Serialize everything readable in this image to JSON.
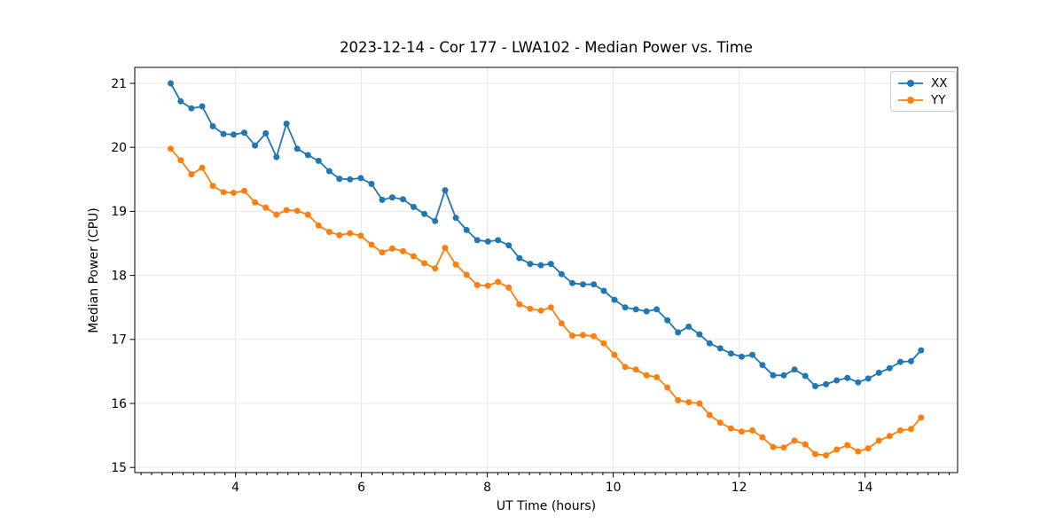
{
  "chart_data": {
    "type": "line",
    "title": "2023-12-14 - Cor 177 - LWA102 - Median Power vs. Time",
    "xlabel": "UT Time (hours)",
    "ylabel": "Median Power (CPU)",
    "xlim": [
      2.4,
      15.47
    ],
    "ylim": [
      14.92,
      21.25
    ],
    "x_major_ticks": [
      4,
      6,
      8,
      10,
      12,
      14
    ],
    "y_major_ticks": [
      15,
      16,
      17,
      18,
      19,
      20,
      21
    ],
    "x_minor_tick_step": 0.1667,
    "grid": true,
    "grid_color": "#e7e7e7",
    "background": "#ffffff",
    "legend": {
      "position": "upper right",
      "entries": [
        "XX",
        "YY"
      ]
    },
    "x": [
      2.97,
      3.13,
      3.3,
      3.47,
      3.64,
      3.81,
      3.97,
      4.14,
      4.31,
      4.48,
      4.65,
      4.81,
      4.98,
      5.15,
      5.32,
      5.49,
      5.65,
      5.82,
      5.99,
      6.16,
      6.33,
      6.49,
      6.66,
      6.83,
      7.0,
      7.17,
      7.33,
      7.5,
      7.67,
      7.84,
      8.01,
      8.17,
      8.34,
      8.51,
      8.68,
      8.85,
      9.01,
      9.18,
      9.35,
      9.52,
      9.69,
      9.85,
      10.02,
      10.19,
      10.36,
      10.53,
      10.69,
      10.86,
      11.03,
      11.2,
      11.37,
      11.53,
      11.7,
      11.87,
      12.04,
      12.21,
      12.37,
      12.54,
      12.71,
      12.88,
      13.05,
      13.21,
      13.38,
      13.55,
      13.72,
      13.89,
      14.05,
      14.22,
      14.39,
      14.56,
      14.73,
      14.89
    ],
    "series": [
      {
        "name": "XX",
        "color": "#1f77b4",
        "values": [
          21.0,
          20.72,
          20.61,
          20.64,
          20.33,
          20.21,
          20.2,
          20.23,
          20.03,
          20.22,
          19.85,
          20.37,
          19.98,
          19.88,
          19.79,
          19.63,
          19.51,
          19.5,
          19.52,
          19.43,
          19.18,
          19.22,
          19.19,
          19.07,
          18.96,
          18.85,
          19.33,
          18.9,
          18.71,
          18.55,
          18.53,
          18.55,
          18.47,
          18.27,
          18.18,
          18.16,
          18.18,
          18.02,
          17.88,
          17.86,
          17.86,
          17.76,
          17.62,
          17.5,
          17.47,
          17.44,
          17.47,
          17.3,
          17.11,
          17.2,
          17.08,
          16.94,
          16.86,
          16.78,
          16.73,
          16.76,
          16.6,
          16.44,
          16.44,
          16.53,
          16.43,
          16.27,
          16.3,
          16.36,
          16.4,
          16.33,
          16.39,
          16.48,
          16.55,
          16.65,
          16.66,
          16.83
        ]
      },
      {
        "name": "YY",
        "color": "#ff7f0e",
        "values": [
          19.98,
          19.8,
          19.58,
          19.68,
          19.4,
          19.3,
          19.29,
          19.32,
          19.14,
          19.06,
          18.95,
          19.02,
          19.01,
          18.95,
          18.78,
          18.68,
          18.63,
          18.66,
          18.62,
          18.48,
          18.36,
          18.42,
          18.38,
          18.3,
          18.19,
          18.11,
          18.43,
          18.17,
          18.01,
          17.85,
          17.84,
          17.9,
          17.81,
          17.55,
          17.48,
          17.45,
          17.5,
          17.25,
          17.06,
          17.07,
          17.05,
          16.94,
          16.76,
          16.57,
          16.53,
          16.44,
          16.41,
          16.25,
          16.05,
          16.02,
          16.0,
          15.82,
          15.7,
          15.61,
          15.56,
          15.58,
          15.47,
          15.32,
          15.31,
          15.42,
          15.36,
          15.21,
          15.19,
          15.28,
          15.35,
          15.25,
          15.3,
          15.42,
          15.49,
          15.58,
          15.6,
          15.78
        ]
      }
    ]
  }
}
